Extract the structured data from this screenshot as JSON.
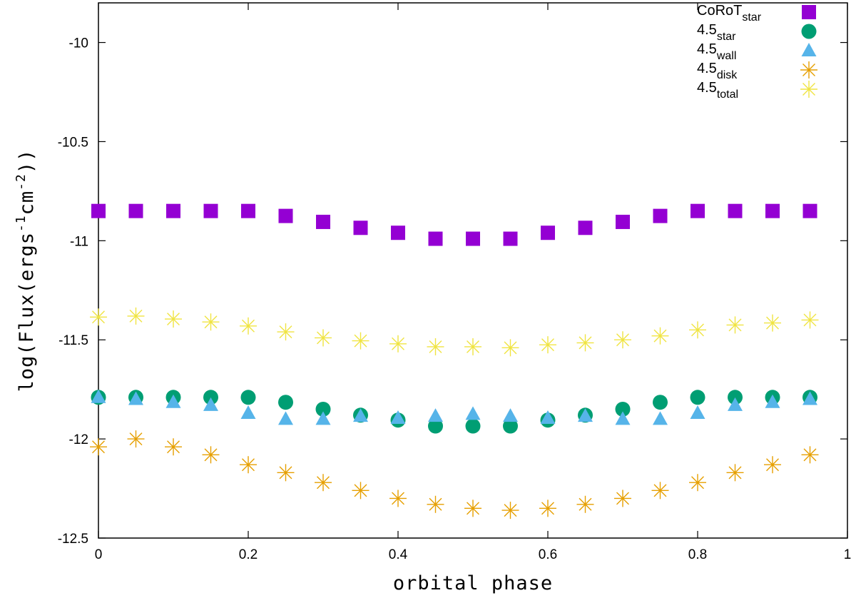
{
  "chart_data": {
    "type": "scatter",
    "title": "",
    "xlabel": "orbital phase",
    "ylabel_parts": {
      "prefix": "log(Flux(ergs",
      "exp1": "-1",
      "mid": "cm",
      "exp2": "-2",
      "suffix": "))"
    },
    "xlim": [
      0,
      1
    ],
    "ylim": [
      -12.5,
      -9.8
    ],
    "x_ticks": [
      0,
      0.2,
      0.4,
      0.6,
      0.8,
      1
    ],
    "x_tick_labels": [
      "0",
      "0.2",
      "0.4",
      "0.6",
      "0.8",
      "1"
    ],
    "y_ticks": [
      -10,
      -10.5,
      -11,
      -11.5,
      -12,
      -12.5
    ],
    "y_tick_labels": [
      "-10",
      "-10.5",
      "-11",
      "-11.5",
      "-12",
      "-12.5"
    ],
    "legend_position": "top-right",
    "x": [
      0,
      0.05,
      0.1,
      0.15,
      0.2,
      0.25,
      0.3,
      0.35,
      0.4,
      0.45,
      0.5,
      0.55,
      0.6,
      0.65,
      0.7,
      0.75,
      0.8,
      0.85,
      0.9,
      0.95
    ],
    "series": [
      {
        "name": "CoRoT",
        "sub": "star",
        "marker": "square",
        "color": "#9400d3",
        "values": [
          -10.85,
          -10.85,
          -10.85,
          -10.85,
          -10.85,
          -10.875,
          -10.905,
          -10.935,
          -10.96,
          -10.99,
          -10.99,
          -10.99,
          -10.96,
          -10.935,
          -10.905,
          -10.875,
          -10.85,
          -10.85,
          -10.85,
          -10.85
        ]
      },
      {
        "name": "4.5",
        "sub": "star",
        "marker": "circle",
        "color": "#009e73",
        "values": [
          -11.79,
          -11.79,
          -11.79,
          -11.79,
          -11.79,
          -11.815,
          -11.85,
          -11.88,
          -11.905,
          -11.935,
          -11.935,
          -11.935,
          -11.905,
          -11.88,
          -11.85,
          -11.815,
          -11.79,
          -11.79,
          -11.79,
          -11.79
        ]
      },
      {
        "name": "4.5",
        "sub": "wall",
        "marker": "triangle",
        "color": "#56b4e9",
        "values": [
          -11.79,
          -11.8,
          -11.815,
          -11.83,
          -11.87,
          -11.9,
          -11.9,
          -11.885,
          -11.895,
          -11.885,
          -11.875,
          -11.885,
          -11.895,
          -11.885,
          -11.9,
          -11.9,
          -11.87,
          -11.83,
          -11.815,
          -11.8
        ]
      },
      {
        "name": "4.5",
        "sub": "disk",
        "marker": "star",
        "color": "#e69f00",
        "values": [
          -12.04,
          -12.0,
          -12.04,
          -12.08,
          -12.13,
          -12.17,
          -12.22,
          -12.26,
          -12.3,
          -12.33,
          -12.35,
          -12.36,
          -12.35,
          -12.33,
          -12.3,
          -12.26,
          -12.22,
          -12.17,
          -12.13,
          -12.08
        ]
      },
      {
        "name": "4.5",
        "sub": "total",
        "marker": "star",
        "color": "#f0e442",
        "values": [
          -11.385,
          -11.38,
          -11.395,
          -11.41,
          -11.43,
          -11.46,
          -11.49,
          -11.505,
          -11.52,
          -11.535,
          -11.535,
          -11.54,
          -11.525,
          -11.515,
          -11.5,
          -11.48,
          -11.45,
          -11.425,
          -11.415,
          -11.4
        ]
      }
    ]
  }
}
